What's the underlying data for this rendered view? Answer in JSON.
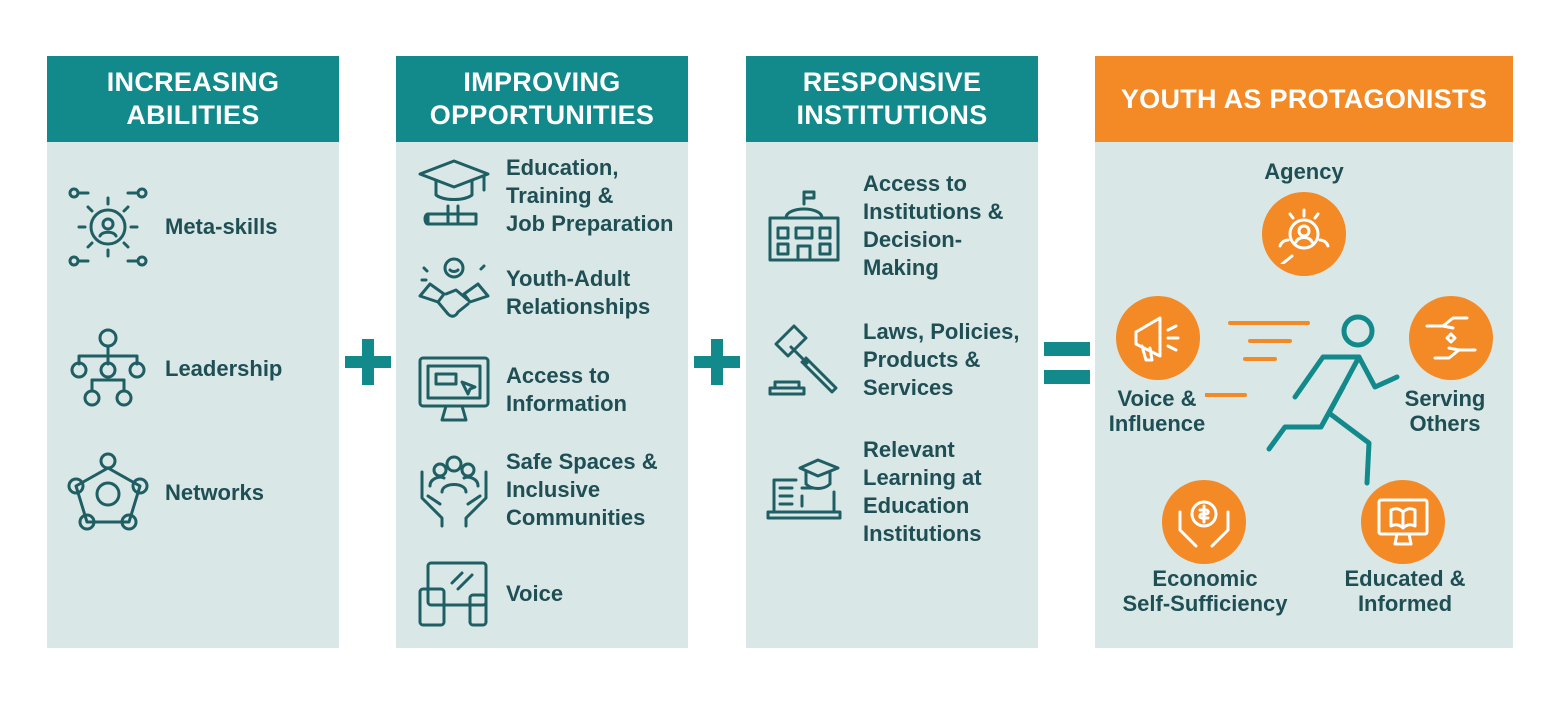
{
  "columns": {
    "abilities": {
      "title": "INCREASING\nABILITIES",
      "items": [
        "Meta-skills",
        "Leadership",
        "Networks"
      ]
    },
    "opportunities": {
      "title": "IMPROVING\nOPPORTUNITIES",
      "items": [
        "Education,\nTraining &\nJob Preparation",
        "Youth-Adult\nRelationships",
        "Access to\nInformation",
        "Safe Spaces &\nInclusive\nCommunities",
        "Voice"
      ]
    },
    "institutions": {
      "title": "RESPONSIVE\nINSTITUTIONS",
      "items": [
        "Access to\nInstitutions &\nDecision-\nMaking",
        "Laws, Policies,\nProducts &\nServices",
        "Relevant\nLearning at\nEducation\nInstitutions"
      ]
    },
    "outcome": {
      "title": "YOUTH AS PROTAGONISTS",
      "agency": "Agency",
      "voice": "Voice &\nInfluence",
      "serving": "Serving\nOthers",
      "economic": "Economic\nSelf-Sufficiency",
      "educated": "Educated &\nInformed"
    }
  },
  "colors": {
    "teal": "#128a8b",
    "orange": "#f38a25",
    "panel": "#d9e7e7",
    "text": "#1f4f54"
  }
}
